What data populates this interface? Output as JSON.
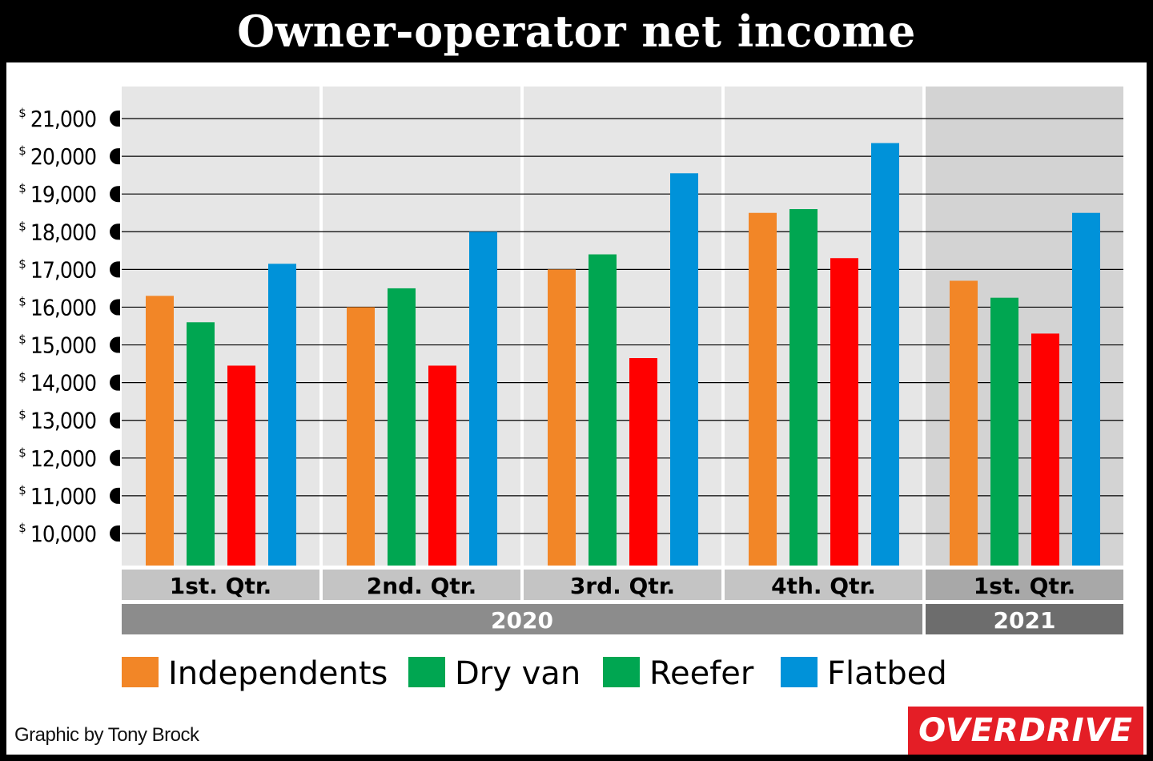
{
  "title": "Owner-operator net income",
  "credit": "Graphic by Tony Brock",
  "logo": "OVERDRIVE",
  "colors": {
    "Independents": "#f28627",
    "Dry van": "#00a651",
    "Reefer": "#ff0000",
    "Flatbed": "#0092d9",
    "legend_reefer_swatch": "#00a651"
  },
  "chart_data": {
    "type": "bar",
    "title": "Owner-operator net income",
    "categories": [
      "1st. Qtr.",
      "2nd. Qtr.",
      "3rd. Qtr.",
      "4th. Qtr.",
      "1st. Qtr."
    ],
    "years": [
      {
        "label": "2020",
        "span": 4
      },
      {
        "label": "2021",
        "span": 1
      }
    ],
    "series": [
      {
        "name": "Independents",
        "values": [
          16300,
          16000,
          17000,
          18500,
          16700
        ]
      },
      {
        "name": "Dry van",
        "values": [
          15600,
          16500,
          17400,
          18600,
          16250
        ]
      },
      {
        "name": "Reefer",
        "values": [
          14450,
          14450,
          14650,
          17300,
          15300
        ]
      },
      {
        "name": "Flatbed",
        "values": [
          17150,
          18000,
          19550,
          20350,
          18500
        ]
      }
    ],
    "y_ticks": [
      {
        "value": 10000,
        "label": "10,000"
      },
      {
        "value": 11000,
        "label": "11,000"
      },
      {
        "value": 12000,
        "label": "12,000"
      },
      {
        "value": 13000,
        "label": "13,000"
      },
      {
        "value": 14000,
        "label": "14,000"
      },
      {
        "value": 15000,
        "label": "15,000"
      },
      {
        "value": 16000,
        "label": "16,000"
      },
      {
        "value": 17000,
        "label": "17,000"
      },
      {
        "value": 18000,
        "label": "18,000"
      },
      {
        "value": 19000,
        "label": "19,000"
      },
      {
        "value": 20000,
        "label": "20,000"
      },
      {
        "value": 21000,
        "label": "21,000"
      }
    ],
    "y_prefix": "$",
    "ylim": [
      9150,
      21850
    ],
    "grid": true,
    "legend_position": "bottom"
  }
}
